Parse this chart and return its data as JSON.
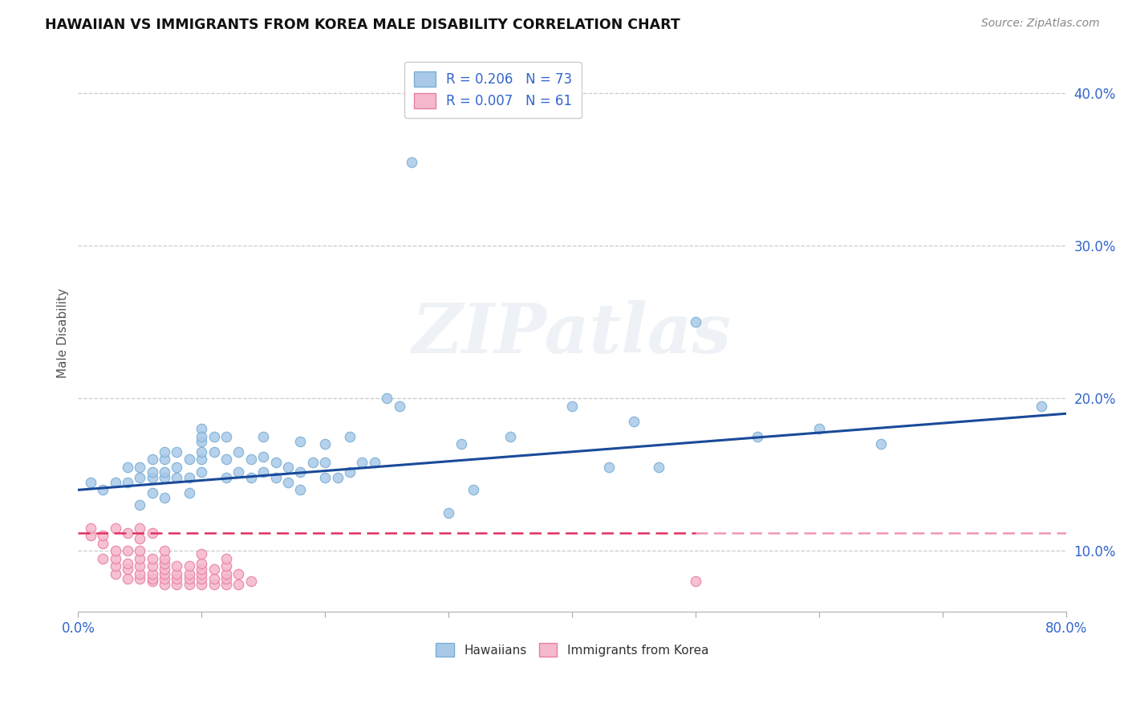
{
  "title": "HAWAIIAN VS IMMIGRANTS FROM KOREA MALE DISABILITY CORRELATION CHART",
  "source": "Source: ZipAtlas.com",
  "ylabel": "Male Disability",
  "xlim": [
    0.0,
    0.8
  ],
  "ylim": [
    0.06,
    0.425
  ],
  "xticks": [
    0.0,
    0.1,
    0.2,
    0.3,
    0.4,
    0.5,
    0.6,
    0.7,
    0.8
  ],
  "xticklabels": [
    "0.0%",
    "",
    "",
    "",
    "",
    "",
    "",
    "",
    "80.0%"
  ],
  "ytick_values": [
    0.1,
    0.2,
    0.3,
    0.4
  ],
  "yticklabels": [
    "10.0%",
    "20.0%",
    "30.0%",
    "40.0%"
  ],
  "legend_R1": "0.206",
  "legend_N1": "73",
  "legend_R2": "0.007",
  "legend_N2": "61",
  "hawaii_face_color": "#aac9e8",
  "hawaii_edge_color": "#7aafd4",
  "korea_face_color": "#f5b8cc",
  "korea_edge_color": "#e87fa0",
  "trend_hawaii_color": "#1a4a99",
  "trend_korea_color": "#e03060",
  "grid_color": "#cccccc",
  "watermark_text": "ZIPatlas",
  "title_color": "#111111",
  "source_color": "#888888",
  "tick_color": "#3366cc",
  "label_color": "#555555",
  "hawaii_x": [
    0.01,
    0.02,
    0.03,
    0.04,
    0.04,
    0.05,
    0.05,
    0.05,
    0.06,
    0.06,
    0.06,
    0.06,
    0.07,
    0.07,
    0.07,
    0.07,
    0.07,
    0.08,
    0.08,
    0.08,
    0.09,
    0.09,
    0.09,
    0.1,
    0.1,
    0.1,
    0.1,
    0.1,
    0.1,
    0.11,
    0.11,
    0.12,
    0.12,
    0.12,
    0.13,
    0.13,
    0.14,
    0.14,
    0.15,
    0.15,
    0.15,
    0.16,
    0.16,
    0.17,
    0.17,
    0.18,
    0.18,
    0.18,
    0.19,
    0.2,
    0.2,
    0.2,
    0.21,
    0.22,
    0.22,
    0.23,
    0.24,
    0.25,
    0.26,
    0.27,
    0.3,
    0.31,
    0.32,
    0.35,
    0.4,
    0.43,
    0.45,
    0.47,
    0.5,
    0.55,
    0.6,
    0.65,
    0.78
  ],
  "hawaii_y": [
    0.145,
    0.14,
    0.145,
    0.145,
    0.155,
    0.13,
    0.148,
    0.155,
    0.138,
    0.148,
    0.152,
    0.16,
    0.135,
    0.148,
    0.152,
    0.16,
    0.165,
    0.148,
    0.155,
    0.165,
    0.138,
    0.148,
    0.16,
    0.152,
    0.16,
    0.165,
    0.172,
    0.18,
    0.175,
    0.165,
    0.175,
    0.148,
    0.16,
    0.175,
    0.152,
    0.165,
    0.148,
    0.16,
    0.152,
    0.162,
    0.175,
    0.148,
    0.158,
    0.145,
    0.155,
    0.14,
    0.152,
    0.172,
    0.158,
    0.148,
    0.158,
    0.17,
    0.148,
    0.152,
    0.175,
    0.158,
    0.158,
    0.2,
    0.195,
    0.355,
    0.125,
    0.17,
    0.14,
    0.175,
    0.195,
    0.155,
    0.185,
    0.155,
    0.25,
    0.175,
    0.18,
    0.17,
    0.195
  ],
  "korea_x": [
    0.01,
    0.01,
    0.02,
    0.02,
    0.02,
    0.03,
    0.03,
    0.03,
    0.03,
    0.03,
    0.04,
    0.04,
    0.04,
    0.04,
    0.04,
    0.05,
    0.05,
    0.05,
    0.05,
    0.05,
    0.05,
    0.05,
    0.06,
    0.06,
    0.06,
    0.06,
    0.06,
    0.06,
    0.07,
    0.07,
    0.07,
    0.07,
    0.07,
    0.07,
    0.07,
    0.08,
    0.08,
    0.08,
    0.08,
    0.09,
    0.09,
    0.09,
    0.09,
    0.1,
    0.1,
    0.1,
    0.1,
    0.1,
    0.1,
    0.11,
    0.11,
    0.11,
    0.12,
    0.12,
    0.12,
    0.12,
    0.12,
    0.13,
    0.13,
    0.14,
    0.5
  ],
  "korea_y": [
    0.11,
    0.115,
    0.095,
    0.105,
    0.11,
    0.085,
    0.09,
    0.095,
    0.1,
    0.115,
    0.082,
    0.088,
    0.092,
    0.1,
    0.112,
    0.082,
    0.085,
    0.09,
    0.095,
    0.1,
    0.108,
    0.115,
    0.08,
    0.082,
    0.085,
    0.09,
    0.095,
    0.112,
    0.078,
    0.082,
    0.085,
    0.088,
    0.092,
    0.095,
    0.1,
    0.078,
    0.082,
    0.085,
    0.09,
    0.078,
    0.082,
    0.085,
    0.09,
    0.078,
    0.082,
    0.085,
    0.088,
    0.092,
    0.098,
    0.078,
    0.082,
    0.088,
    0.078,
    0.082,
    0.085,
    0.09,
    0.095,
    0.078,
    0.085,
    0.08,
    0.08
  ]
}
